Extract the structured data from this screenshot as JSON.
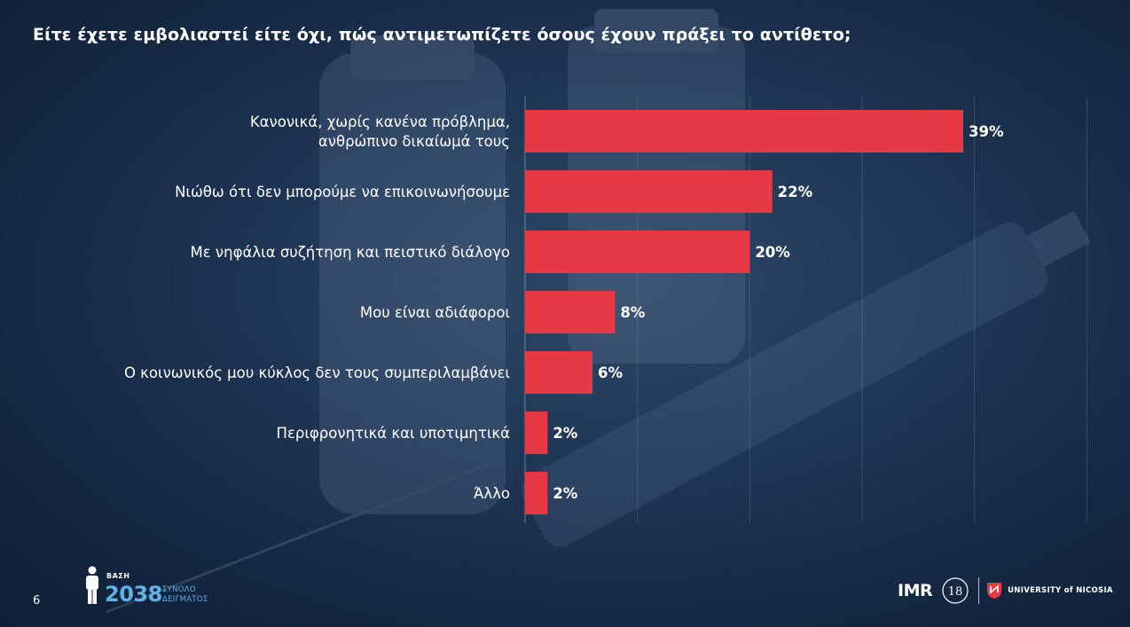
{
  "title": "Είτε έχετε εμβολιαστεί είτε όχι, πώς αντιμετωπίζετε όσους έχουν πράξει το αντίθετο;",
  "chart_data": {
    "type": "bar",
    "orientation": "horizontal",
    "categories": [
      [
        "Κανονικά, χωρίς κανένα πρόβλημα,",
        "ανθρώπινο δικαίωμά τους"
      ],
      [
        "Νιώθω ότι δεν μπορούμε να επικοινωνήσουμε"
      ],
      [
        "Με νηφάλια συζήτηση και πειστικό διάλογο"
      ],
      [
        "Μου είναι αδιάφοροι"
      ],
      [
        "Ο κοινωνικός μου κύκλος δεν τους συμπεριλαμβάνει"
      ],
      [
        "Περιφρονητικά και υποτιμητικά"
      ],
      [
        "Άλλο"
      ]
    ],
    "values": [
      39,
      22,
      20,
      8,
      6,
      2,
      2
    ],
    "value_labels": [
      "39%",
      "22%",
      "20%",
      "8%",
      "6%",
      "2%",
      "2%"
    ],
    "xlim": [
      0,
      50
    ],
    "grid": true,
    "bar_color": "#e63946"
  },
  "footer": {
    "page_number": "6",
    "base_label": "ΒΑΣΗ",
    "base_count": "2038",
    "base_caption_1": "ΣΥΝΟΛΟ",
    "base_caption_2": "ΔΕΙΓΜΑΤΟΣ",
    "logo_imr": "IMR",
    "logo_anniversary": "18",
    "logo_university": "UNIVERSITY of NICOSIA"
  }
}
